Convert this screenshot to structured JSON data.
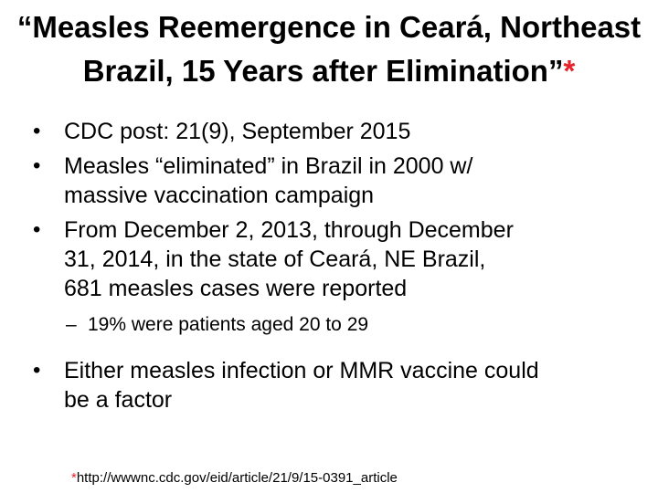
{
  "title": {
    "line1": "“Measles Reemergence in Ceará, Northeast",
    "line2": "Brazil, 15 Years after Elimination”",
    "asterisk": "*"
  },
  "bullets": [
    {
      "marker": "•",
      "lines": [
        "CDC post: 21(9),  September 2015"
      ]
    },
    {
      "marker": "•",
      "lines": [
        "Measles “eliminated” in Brazil in 2000 w/",
        "massive vaccination campaign"
      ]
    },
    {
      "marker": "•",
      "lines": [
        "From December 2, 2013, through December",
        "31, 2014, in the state of Ceará, NE Brazil,",
        "681 measles cases were reported"
      ]
    },
    {
      "marker": "•",
      "lines": [
        "Either measles infection or MMR vaccine could",
        "be a factor"
      ]
    }
  ],
  "sub_bullet": {
    "marker": "–",
    "text": "19% were patients aged 20 to 29"
  },
  "footnote": {
    "asterisk": "*",
    "text": "http://wwwnc.cdc.gov/eid/article/21/9/15-0391_article"
  },
  "colors": {
    "accent_red": "#e8202a",
    "text": "#000000",
    "background": "#ffffff"
  }
}
